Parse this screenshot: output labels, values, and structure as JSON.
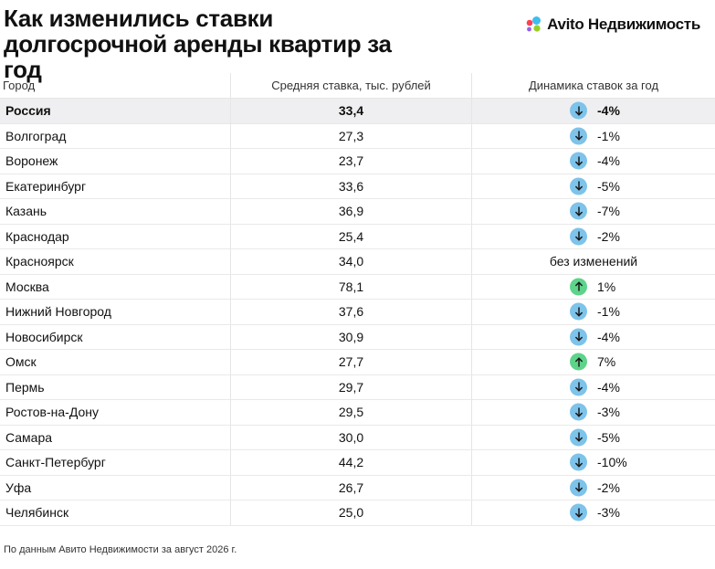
{
  "title": "Как изменились ставки долгосрочной аренды квартир за год",
  "brand": {
    "name": "Avito Недвижимость",
    "dot_colors": [
      "#3ebdf0",
      "#ff4053",
      "#97cf26",
      "#965eeb"
    ]
  },
  "colors": {
    "down": "#7ec3ea",
    "up": "#5ed38a",
    "highlight_row": "#efeff1"
  },
  "chart_data": {
    "type": "table",
    "columns": [
      "Город",
      "Средняя ставка, тыс. рублей",
      "Динамика ставок за год"
    ],
    "rows": [
      {
        "city": "Россия",
        "rate": "33,4",
        "trend": "down",
        "change": "-4%",
        "highlight": true
      },
      {
        "city": "Волгоград",
        "rate": "27,3",
        "trend": "down",
        "change": "-1%"
      },
      {
        "city": "Воронеж",
        "rate": "23,7",
        "trend": "down",
        "change": "-4%"
      },
      {
        "city": "Екатеринбург",
        "rate": "33,6",
        "trend": "down",
        "change": "-5%"
      },
      {
        "city": "Казань",
        "rate": "36,9",
        "trend": "down",
        "change": "-7%"
      },
      {
        "city": "Краснодар",
        "rate": "25,4",
        "trend": "down",
        "change": "-2%"
      },
      {
        "city": "Красноярск",
        "rate": "34,0",
        "trend": "none",
        "change": "без изменений"
      },
      {
        "city": "Москва",
        "rate": "78,1",
        "trend": "up",
        "change": "1%"
      },
      {
        "city": "Нижний Новгород",
        "rate": "37,6",
        "trend": "down",
        "change": "-1%"
      },
      {
        "city": "Новосибирск",
        "rate": "30,9",
        "trend": "down",
        "change": "-4%"
      },
      {
        "city": "Омск",
        "rate": "27,7",
        "trend": "up",
        "change": "7%"
      },
      {
        "city": "Пермь",
        "rate": "29,7",
        "trend": "down",
        "change": "-4%"
      },
      {
        "city": "Ростов-на-Дону",
        "rate": "29,5",
        "trend": "down",
        "change": "-3%"
      },
      {
        "city": "Самара",
        "rate": "30,0",
        "trend": "down",
        "change": "-5%"
      },
      {
        "city": "Санкт-Петербург",
        "rate": "44,2",
        "trend": "down",
        "change": "-10%"
      },
      {
        "city": "Уфа",
        "rate": "26,7",
        "trend": "down",
        "change": "-2%"
      },
      {
        "city": "Челябинск",
        "rate": "25,0",
        "trend": "down",
        "change": "-3%"
      }
    ]
  },
  "footer": "По данным Авито Недвижимости за август 2026 г."
}
